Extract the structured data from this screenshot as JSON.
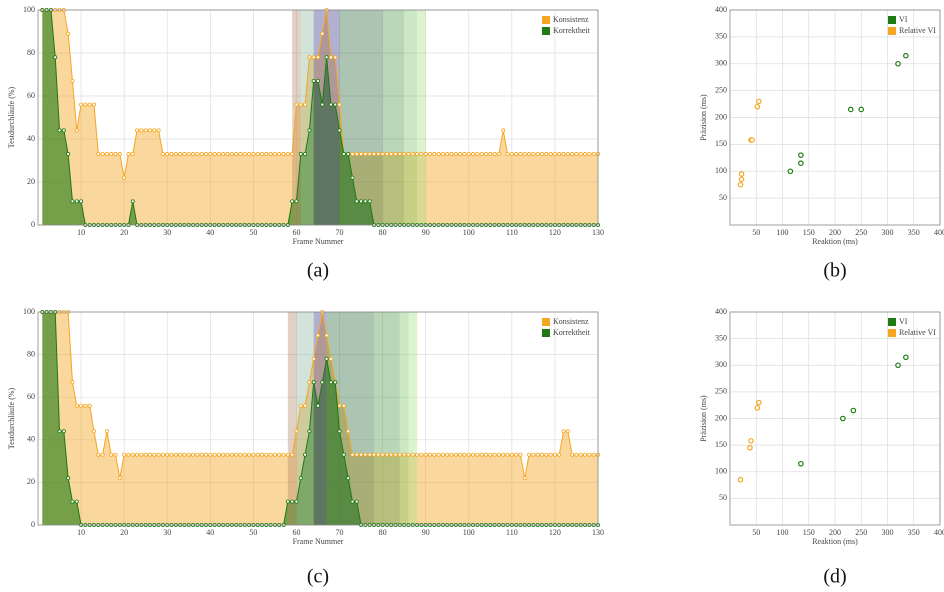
{
  "chart_data": [
    {
      "type": "line",
      "caption": "(a)",
      "xlabel": "Frame Nummer",
      "ylabel": "Testdurchläufe (%)",
      "xlim": [
        0,
        130
      ],
      "ylim": [
        0,
        100
      ],
      "xticks": [
        10,
        20,
        30,
        40,
        50,
        60,
        70,
        80,
        90,
        100,
        110,
        120,
        130
      ],
      "yticks": [
        0,
        20,
        40,
        60,
        80,
        100
      ],
      "grid": true,
      "legend": "top-right",
      "x": [
        1,
        2,
        3,
        4,
        5,
        6,
        7,
        8,
        9,
        10,
        11,
        12,
        13,
        14,
        15,
        16,
        17,
        18,
        19,
        20,
        21,
        22,
        23,
        24,
        25,
        26,
        27,
        28,
        29,
        30,
        31,
        32,
        33,
        34,
        35,
        36,
        37,
        38,
        39,
        40,
        41,
        42,
        43,
        44,
        45,
        46,
        47,
        48,
        49,
        50,
        51,
        52,
        53,
        54,
        55,
        56,
        57,
        58,
        59,
        60,
        61,
        62,
        63,
        64,
        65,
        66,
        67,
        68,
        69,
        70,
        71,
        72,
        73,
        74,
        75,
        76,
        77,
        78,
        79,
        80,
        81,
        82,
        83,
        84,
        85,
        86,
        87,
        88,
        89,
        90,
        91,
        92,
        93,
        94,
        95,
        96,
        97,
        98,
        99,
        100,
        101,
        102,
        103,
        104,
        105,
        106,
        107,
        108,
        109,
        110,
        111,
        112,
        113,
        114,
        115,
        116,
        117,
        118,
        119,
        120,
        121,
        122,
        123,
        124,
        125,
        126,
        127,
        128,
        129,
        130
      ],
      "spans": [
        {
          "x": [
            59,
            61
          ],
          "color": "#b5896b"
        },
        {
          "x": [
            61,
            64
          ],
          "color": "#8fb8a0"
        },
        {
          "x": [
            64,
            70
          ],
          "color": "#3e3a8c"
        },
        {
          "x": [
            70,
            80
          ],
          "color": "#2f6e3e"
        },
        {
          "x": [
            80,
            85
          ],
          "color": "#4f9a4a"
        },
        {
          "x": [
            85,
            88
          ],
          "color": "#7cc36a"
        },
        {
          "x": [
            88,
            90
          ],
          "color": "#a8e08a"
        }
      ],
      "series": [
        {
          "name": "Konsistenz",
          "color": "#f5a623",
          "values": [
            100,
            100,
            100,
            100,
            100,
            100,
            89,
            67,
            44,
            56,
            56,
            56,
            56,
            33,
            33,
            33,
            33,
            33,
            33,
            22,
            33,
            33,
            44,
            44,
            44,
            44,
            44,
            44,
            33,
            33,
            33,
            33,
            33,
            33,
            33,
            33,
            33,
            33,
            33,
            33,
            33,
            33,
            33,
            33,
            33,
            33,
            33,
            33,
            33,
            33,
            33,
            33,
            33,
            33,
            33,
            33,
            33,
            33,
            33,
            56,
            56,
            56,
            78,
            78,
            78,
            89,
            100,
            78,
            78,
            56,
            33,
            33,
            33,
            33,
            33,
            33,
            33,
            33,
            33,
            33,
            33,
            33,
            33,
            33,
            33,
            33,
            33,
            33,
            33,
            33,
            33,
            33,
            33,
            33,
            33,
            33,
            33,
            33,
            33,
            33,
            33,
            33,
            33,
            33,
            33,
            33,
            33,
            44,
            33,
            33,
            33,
            33,
            33,
            33,
            33,
            33,
            33,
            33,
            33,
            33,
            33,
            33,
            33,
            33,
            33,
            33,
            33,
            33,
            33,
            33
          ]
        },
        {
          "name": "Korrektheit",
          "color": "#1e7a12",
          "values": [
            100,
            100,
            100,
            78,
            44,
            44,
            33,
            11,
            11,
            11,
            0,
            0,
            0,
            0,
            0,
            0,
            0,
            0,
            0,
            0,
            0,
            11,
            0,
            0,
            0,
            0,
            0,
            0,
            0,
            0,
            0,
            0,
            0,
            0,
            0,
            0,
            0,
            0,
            0,
            0,
            0,
            0,
            0,
            0,
            0,
            0,
            0,
            0,
            0,
            0,
            0,
            0,
            0,
            0,
            0,
            0,
            0,
            0,
            11,
            11,
            33,
            33,
            44,
            67,
            67,
            56,
            78,
            56,
            56,
            44,
            33,
            33,
            22,
            11,
            11,
            11,
            11,
            0,
            0,
            0,
            0,
            0,
            0,
            0,
            0,
            0,
            0,
            0,
            0,
            0,
            0,
            0,
            0,
            0,
            0,
            0,
            0,
            0,
            0,
            0,
            0,
            0,
            0,
            0,
            0,
            0,
            0,
            0,
            0,
            0,
            0,
            0,
            0,
            0,
            0,
            0,
            0,
            0,
            0,
            0,
            0,
            0,
            0,
            0,
            0,
            0,
            0,
            0,
            0,
            0
          ]
        }
      ]
    },
    {
      "type": "scatter",
      "caption": "(b)",
      "xlabel": "Reaktion (ms)",
      "ylabel": "Präzision (ms)",
      "xlim": [
        0,
        400
      ],
      "ylim": [
        0,
        400
      ],
      "xticks": [
        50,
        100,
        150,
        200,
        250,
        300,
        350,
        400
      ],
      "yticks": [
        50,
        100,
        150,
        200,
        250,
        300,
        350,
        400
      ],
      "grid": true,
      "legend": "top-right",
      "series": [
        {
          "name": "VI",
          "color": "#1e7a12",
          "x": [
            115,
            135,
            135,
            230,
            250,
            320,
            335
          ],
          "values": [
            100,
            115,
            130,
            215,
            215,
            300,
            315
          ]
        },
        {
          "name": "Relative VI",
          "color": "#f5a623",
          "x": [
            20,
            22,
            22,
            40,
            42,
            52,
            55
          ],
          "values": [
            75,
            85,
            95,
            158,
            158,
            220,
            230
          ]
        }
      ]
    },
    {
      "type": "line",
      "caption": "(c)",
      "xlabel": "Frame Nummer",
      "ylabel": "Testdurchläufe (%)",
      "xlim": [
        0,
        130
      ],
      "ylim": [
        0,
        100
      ],
      "xticks": [
        10,
        20,
        30,
        40,
        50,
        60,
        70,
        80,
        90,
        100,
        110,
        120,
        130
      ],
      "yticks": [
        0,
        20,
        40,
        60,
        80,
        100
      ],
      "grid": true,
      "legend": "top-right",
      "x": [
        1,
        2,
        3,
        4,
        5,
        6,
        7,
        8,
        9,
        10,
        11,
        12,
        13,
        14,
        15,
        16,
        17,
        18,
        19,
        20,
        21,
        22,
        23,
        24,
        25,
        26,
        27,
        28,
        29,
        30,
        31,
        32,
        33,
        34,
        35,
        36,
        37,
        38,
        39,
        40,
        41,
        42,
        43,
        44,
        45,
        46,
        47,
        48,
        49,
        50,
        51,
        52,
        53,
        54,
        55,
        56,
        57,
        58,
        59,
        60,
        61,
        62,
        63,
        64,
        65,
        66,
        67,
        68,
        69,
        70,
        71,
        72,
        73,
        74,
        75,
        76,
        77,
        78,
        79,
        80,
        81,
        82,
        83,
        84,
        85,
        86,
        87,
        88,
        89,
        90,
        91,
        92,
        93,
        94,
        95,
        96,
        97,
        98,
        99,
        100,
        101,
        102,
        103,
        104,
        105,
        106,
        107,
        108,
        109,
        110,
        111,
        112,
        113,
        114,
        115,
        116,
        117,
        118,
        119,
        120,
        121,
        122,
        123,
        124,
        125,
        126,
        127,
        128,
        129,
        130
      ],
      "spans": [
        {
          "x": [
            58,
            60
          ],
          "color": "#b5896b"
        },
        {
          "x": [
            60,
            64
          ],
          "color": "#8fb8a0"
        },
        {
          "x": [
            64,
            67
          ],
          "color": "#3e3a8c"
        },
        {
          "x": [
            67,
            78
          ],
          "color": "#2f6e3e"
        },
        {
          "x": [
            78,
            84
          ],
          "color": "#4f9a4a"
        },
        {
          "x": [
            84,
            86
          ],
          "color": "#7cc36a"
        },
        {
          "x": [
            86,
            88
          ],
          "color": "#a8e08a"
        }
      ],
      "series": [
        {
          "name": "Konsistenz",
          "color": "#f5a623",
          "values": [
            100,
            100,
            100,
            100,
            100,
            100,
            100,
            67,
            56,
            56,
            56,
            56,
            44,
            33,
            33,
            44,
            33,
            33,
            22,
            33,
            33,
            33,
            33,
            33,
            33,
            33,
            33,
            33,
            33,
            33,
            33,
            33,
            33,
            33,
            33,
            33,
            33,
            33,
            33,
            33,
            33,
            33,
            33,
            33,
            33,
            33,
            33,
            33,
            33,
            33,
            33,
            33,
            33,
            33,
            33,
            33,
            33,
            33,
            33,
            44,
            56,
            56,
            67,
            78,
            89,
            100,
            89,
            78,
            67,
            56,
            56,
            44,
            33,
            33,
            33,
            33,
            33,
            33,
            33,
            33,
            33,
            33,
            33,
            33,
            33,
            33,
            33,
            33,
            33,
            33,
            33,
            33,
            33,
            33,
            33,
            33,
            33,
            33,
            33,
            33,
            33,
            33,
            33,
            33,
            33,
            33,
            33,
            33,
            33,
            33,
            33,
            33,
            22,
            33,
            33,
            33,
            33,
            33,
            33,
            33,
            33,
            44,
            44,
            33,
            33,
            33,
            33,
            33,
            33,
            33
          ]
        },
        {
          "name": "Korrektheit",
          "color": "#1e7a12",
          "values": [
            100,
            100,
            100,
            100,
            44,
            44,
            22,
            11,
            11,
            0,
            0,
            0,
            0,
            0,
            0,
            0,
            0,
            0,
            0,
            0,
            0,
            0,
            0,
            0,
            0,
            0,
            0,
            0,
            0,
            0,
            0,
            0,
            0,
            0,
            0,
            0,
            0,
            0,
            0,
            0,
            0,
            0,
            0,
            0,
            0,
            0,
            0,
            0,
            0,
            0,
            0,
            0,
            0,
            0,
            0,
            0,
            0,
            11,
            11,
            11,
            22,
            33,
            44,
            67,
            56,
            67,
            78,
            67,
            67,
            44,
            33,
            22,
            11,
            11,
            0,
            0,
            0,
            0,
            0,
            0,
            0,
            0,
            0,
            0,
            0,
            0,
            0,
            0,
            0,
            0,
            0,
            0,
            0,
            0,
            0,
            0,
            0,
            0,
            0,
            0,
            0,
            0,
            0,
            0,
            0,
            0,
            0,
            0,
            0,
            0,
            0,
            0,
            0,
            0,
            0,
            0,
            0,
            0,
            0,
            0,
            0,
            0,
            0,
            0,
            0,
            0,
            0,
            0,
            0,
            0
          ]
        }
      ]
    },
    {
      "type": "scatter",
      "caption": "(d)",
      "xlabel": "Reaktion (ms)",
      "ylabel": "Präzision (ms)",
      "xlim": [
        0,
        400
      ],
      "ylim": [
        0,
        400
      ],
      "xticks": [
        50,
        100,
        150,
        200,
        250,
        300,
        350,
        400
      ],
      "yticks": [
        50,
        100,
        150,
        200,
        250,
        300,
        350,
        400
      ],
      "grid": true,
      "legend": "top-right",
      "series": [
        {
          "name": "VI",
          "color": "#1e7a12",
          "x": [
            135,
            215,
            235,
            320,
            335
          ],
          "values": [
            115,
            200,
            215,
            300,
            315
          ]
        },
        {
          "name": "Relative VI",
          "color": "#f5a623",
          "x": [
            20,
            38,
            40,
            52,
            55
          ],
          "values": [
            85,
            145,
            158,
            220,
            230
          ]
        }
      ]
    }
  ]
}
